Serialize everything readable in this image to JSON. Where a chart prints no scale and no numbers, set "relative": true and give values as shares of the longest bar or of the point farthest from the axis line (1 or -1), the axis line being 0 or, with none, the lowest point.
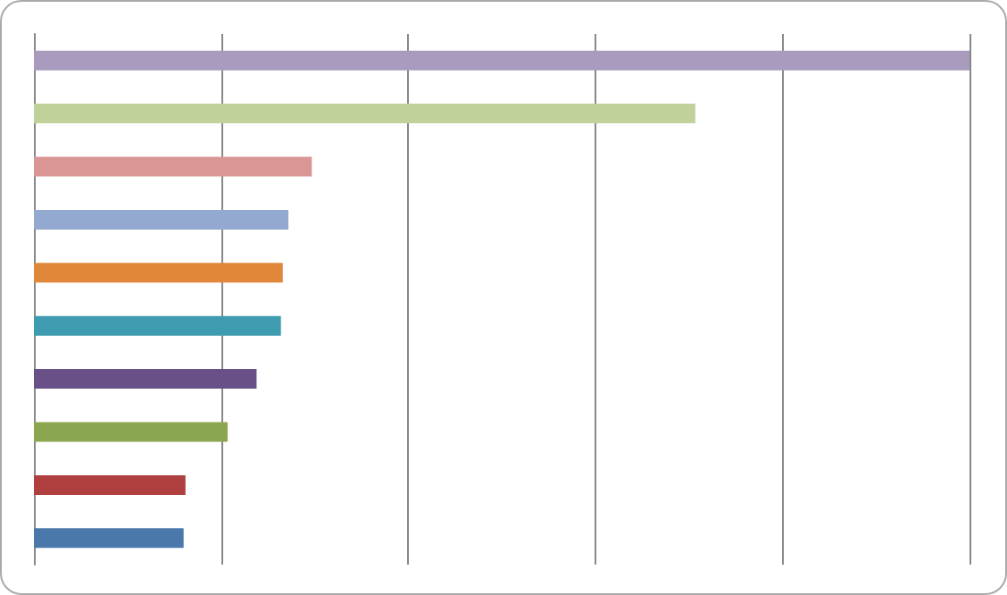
{
  "chart_data": {
    "type": "bar",
    "orientation": "horizontal",
    "relative": true,
    "grid": "x",
    "categories": [
      null,
      null,
      null,
      null,
      null,
      null,
      null,
      null,
      null,
      null
    ],
    "values": [
      1,
      0.707,
      0.297,
      0.272,
      0.266,
      0.264,
      0.238,
      0.207,
      0.162,
      0.16
    ],
    "colors": [
      "#a89bbd",
      "#c0d29a",
      "#d99694",
      "#94a9d0",
      "#e0873a",
      "#3e9bb0",
      "#6a5089",
      "#8aa64f",
      "#b04040",
      "#4a78aa"
    ]
  }
}
